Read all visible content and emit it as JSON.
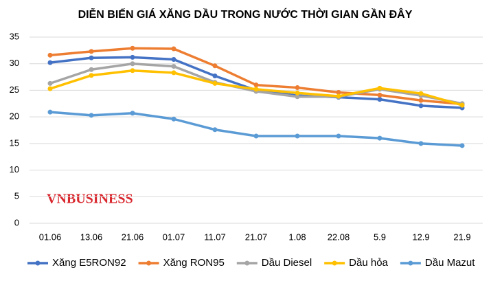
{
  "chart_data": {
    "type": "line",
    "title": "DIỄN BIẾN GIÁ XĂNG DẦU TRONG NƯỚC THỜI GIAN GẦN ĐÂY",
    "watermark": "VNBUSINESS",
    "categories": [
      "01.06",
      "13.06",
      "21.06",
      "01.07",
      "11.07",
      "21.07",
      "1.08",
      "22.08",
      "5.9",
      "12.9",
      "21.9"
    ],
    "series": [
      {
        "name": "Xăng E5RON92",
        "color": "#4472c4",
        "values": [
          30.2,
          31.1,
          31.2,
          30.8,
          27.7,
          25.0,
          24.0,
          23.7,
          23.3,
          22.1,
          21.7
        ]
      },
      {
        "name": "Xăng RON95",
        "color": "#ed7d31",
        "values": [
          31.6,
          32.3,
          32.9,
          32.8,
          29.6,
          26.0,
          25.5,
          24.6,
          24.1,
          23.1,
          22.4
        ]
      },
      {
        "name": "Dầu Diesel",
        "color": "#a5a5a5",
        "values": [
          26.3,
          28.9,
          30.0,
          29.5,
          26.5,
          24.8,
          23.8,
          23.8,
          25.2,
          24.0,
          22.5
        ]
      },
      {
        "name": "Dầu hỏa",
        "color": "#ffc000",
        "values": [
          25.3,
          27.8,
          28.7,
          28.3,
          26.3,
          25.2,
          24.5,
          23.9,
          25.4,
          24.4,
          22.2
        ]
      },
      {
        "name": "Dầu Mazut",
        "color": "#5b9bd5",
        "values": [
          20.9,
          20.3,
          20.7,
          19.6,
          17.6,
          16.4,
          16.4,
          16.4,
          16.0,
          15.0,
          14.6
        ]
      }
    ],
    "ylim": [
      0,
      35
    ],
    "yticks": [
      0,
      5,
      10,
      15,
      20,
      25,
      30,
      35
    ],
    "grid": true,
    "legend": "bottom"
  }
}
